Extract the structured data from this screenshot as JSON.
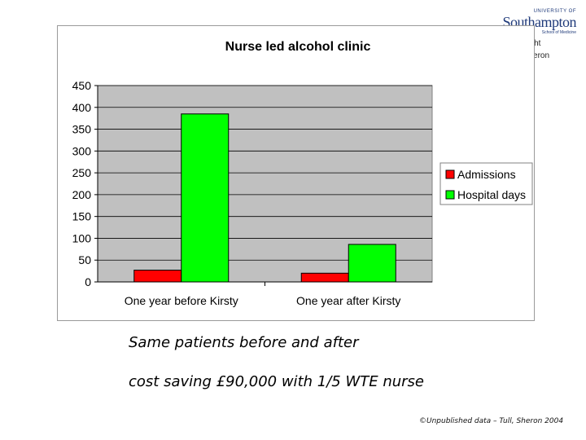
{
  "logo": {
    "university": "UNIVERSITY OF",
    "name": "Southampton",
    "subtitle": "School of Medicine"
  },
  "copyright": {
    "line1": "yright",
    "line2": ":Sheron"
  },
  "captions": {
    "line1": "Same patients before and after",
    "line2": "cost saving £90,000 with 1/5 WTE nurse"
  },
  "footer": "©Unpublished data – Tull, Sheron 2004",
  "colors": {
    "admissions": "#ff0000",
    "hospital_days": "#00ff00",
    "plot_background": "#c0c0c0"
  },
  "chart_data": {
    "type": "bar",
    "title": "Nurse led alcohol clinic",
    "categories": [
      "One year before Kirsty",
      "One year after Kirsty"
    ],
    "series": [
      {
        "name": "Admissions",
        "values": [
          27,
          20
        ]
      },
      {
        "name": "Hospital days",
        "values": [
          385,
          86
        ]
      }
    ],
    "ylim": [
      0,
      450
    ],
    "yticks": [
      0,
      50,
      100,
      150,
      200,
      250,
      300,
      350,
      400,
      450
    ],
    "grid": true,
    "legend_position": "right"
  }
}
